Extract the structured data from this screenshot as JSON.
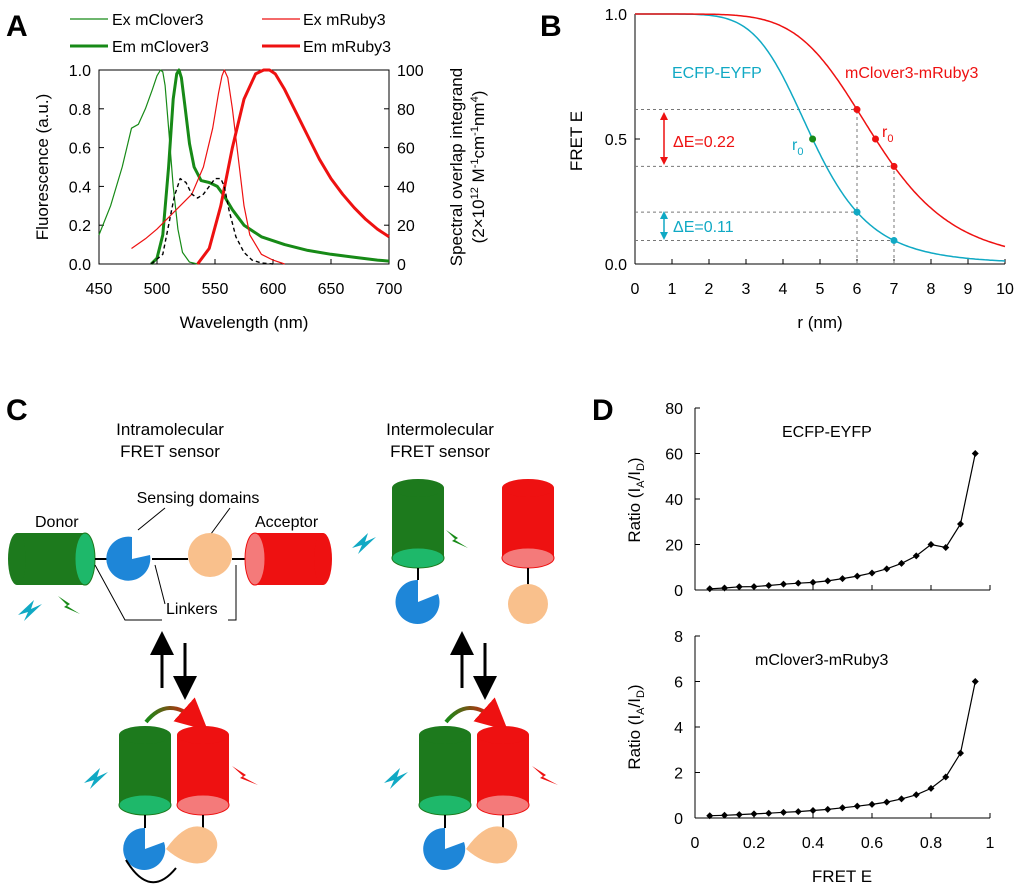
{
  "panels": {
    "A": "A",
    "B": "B",
    "C": "C",
    "D": "D"
  },
  "colors": {
    "green": "#178a17",
    "red": "#ee1111",
    "cyan": "#10a9c4",
    "dark_green": "#1d7a1d",
    "light_green": "#1eb86a",
    "blue": "#1e86d8",
    "peach": "#f9c08c",
    "pink": "#f47a7a"
  },
  "chart_data": [
    {
      "id": "A",
      "type": "line",
      "title": "",
      "xlabel": "Wavelength (nm)",
      "ylabel": "Fluorescence (a.u.)",
      "y2label_line1": "Spectral overlap integrand",
      "y2label_line2": "(2×10",
      "y2label_sup1": "12",
      "y2label_mid": " M",
      "y2label_sup2": "-1",
      "y2label_mid2": "cm",
      "y2label_sup3": "-1",
      "y2label_mid3": "nm",
      "y2label_sup4": "4",
      "y2label_end": ")",
      "xlim": [
        450,
        700
      ],
      "ylim": [
        0,
        1.0
      ],
      "y2lim": [
        0,
        100
      ],
      "xticks": [
        "450",
        "500",
        "550",
        "600",
        "650",
        "700"
      ],
      "yticks": [
        "0.0",
        "0.2",
        "0.4",
        "0.6",
        "0.8",
        "1.0"
      ],
      "y2ticks": [
        "0",
        "20",
        "40",
        "60",
        "80",
        "100"
      ],
      "legend": [
        "Ex mClover3",
        "Em mClover3",
        "Ex mRuby3",
        "Em mRuby3"
      ],
      "series": [
        {
          "name": "Ex mClover3",
          "color": "#178a17",
          "width": 1.2,
          "x": [
            450,
            460,
            470,
            478,
            484,
            490,
            496,
            500,
            503,
            505,
            507,
            510,
            514,
            518,
            522,
            528,
            535
          ],
          "y": [
            0.15,
            0.3,
            0.5,
            0.7,
            0.72,
            0.8,
            0.9,
            0.97,
            1.0,
            0.99,
            0.92,
            0.7,
            0.4,
            0.18,
            0.06,
            0.01,
            0.0
          ]
        },
        {
          "name": "Em mClover3",
          "color": "#178a17",
          "width": 3,
          "x": [
            495,
            500,
            505,
            510,
            514,
            517,
            519,
            521,
            524,
            528,
            532,
            538,
            545,
            552,
            558,
            565,
            575,
            590,
            610,
            630,
            650,
            670,
            690,
            700
          ],
          "y": [
            0.0,
            0.03,
            0.15,
            0.5,
            0.85,
            0.98,
            1.0,
            0.96,
            0.82,
            0.62,
            0.5,
            0.43,
            0.42,
            0.4,
            0.35,
            0.28,
            0.2,
            0.14,
            0.1,
            0.07,
            0.05,
            0.035,
            0.02,
            0.015
          ]
        },
        {
          "name": "Ex mRuby3",
          "color": "#ee1111",
          "width": 1.2,
          "x": [
            478,
            490,
            500,
            510,
            520,
            530,
            540,
            548,
            553,
            556,
            558,
            561,
            565,
            570,
            575,
            580,
            590,
            600,
            610
          ],
          "y": [
            0.08,
            0.13,
            0.18,
            0.24,
            0.3,
            0.36,
            0.5,
            0.7,
            0.88,
            0.97,
            1.0,
            0.96,
            0.8,
            0.55,
            0.3,
            0.15,
            0.05,
            0.02,
            0.0
          ]
        },
        {
          "name": "Em mRuby3",
          "color": "#ee1111",
          "width": 3,
          "x": [
            535,
            545,
            555,
            565,
            575,
            585,
            592,
            597,
            602,
            610,
            620,
            630,
            640,
            650,
            660,
            670,
            680,
            690,
            700
          ],
          "y": [
            0.0,
            0.08,
            0.3,
            0.6,
            0.85,
            0.98,
            1.0,
            1.0,
            0.98,
            0.9,
            0.78,
            0.66,
            0.54,
            0.44,
            0.36,
            0.29,
            0.23,
            0.18,
            0.14
          ]
        },
        {
          "name": "Overlap integrand",
          "color": "#000000",
          "width": 1.4,
          "dashed": true,
          "axis": "y2",
          "x": [
            495,
            505,
            510,
            515,
            520,
            525,
            530,
            535,
            540,
            545,
            550,
            555,
            558,
            562,
            568,
            575,
            582,
            590,
            600
          ],
          "y": [
            0,
            5,
            20,
            35,
            44,
            42,
            36,
            34,
            36,
            40,
            44,
            44,
            40,
            28,
            14,
            6,
            2,
            0.5,
            0
          ]
        }
      ]
    },
    {
      "id": "B",
      "type": "line",
      "xlabel": "r (nm)",
      "ylabel": "FRET E",
      "xlim": [
        0,
        10
      ],
      "ylim": [
        0,
        1
      ],
      "xticks": [
        "0",
        "1",
        "2",
        "3",
        "4",
        "5",
        "6",
        "7",
        "8",
        "9",
        "10"
      ],
      "yticks": [
        "0.0",
        "0.5",
        "1.0"
      ],
      "series": [
        {
          "name": "ECFP-EYFP",
          "color": "#10a9c4",
          "r0": 4.8
        },
        {
          "name": "mClover3-mRuby3",
          "color": "#ee1111",
          "r0": 6.5
        }
      ],
      "r0_label": "r",
      "r0_sub": "0",
      "delta_labels": [
        "ΔE=0.22",
        "ΔE=0.11"
      ]
    },
    {
      "id": "D1",
      "type": "line",
      "title": "ECFP-EYFP",
      "ylabel_main": "Ratio (I",
      "ylabel_subA": "A",
      "ylabel_mid": "/I",
      "ylabel_subD": "D",
      "ylabel_end": ")",
      "ylim": [
        0,
        80
      ],
      "xlim": [
        0,
        1
      ],
      "yticks": [
        "0",
        "20",
        "40",
        "60",
        "80"
      ],
      "x": [
        0.05,
        0.1,
        0.15,
        0.2,
        0.25,
        0.3,
        0.35,
        0.4,
        0.45,
        0.5,
        0.55,
        0.6,
        0.65,
        0.7,
        0.75,
        0.8,
        0.85,
        0.9,
        0.95
      ],
      "y": [
        0.53,
        0.89,
        1.41,
        1.5,
        2.0,
        2.57,
        3.0,
        3.33,
        4.0,
        5.0,
        6.1,
        7.5,
        9.3,
        11.7,
        15.0,
        20.0,
        18.7,
        29.0,
        60.0
      ]
    },
    {
      "id": "D2",
      "type": "line",
      "title": "mClover3-mRuby3",
      "ylabel_main": "Ratio (I",
      "ylabel_subA": "A",
      "ylabel_mid": "/I",
      "ylabel_subD": "D",
      "ylabel_end": ")",
      "xlabel": "FRET E",
      "ylim": [
        0,
        8
      ],
      "xlim": [
        0,
        1
      ],
      "yticks": [
        "0",
        "2",
        "4",
        "6",
        "8"
      ],
      "xticks": [
        "0",
        "0.2",
        "0.4",
        "0.6",
        "0.8",
        "1"
      ],
      "x": [
        0.05,
        0.1,
        0.15,
        0.2,
        0.25,
        0.3,
        0.35,
        0.4,
        0.45,
        0.5,
        0.55,
        0.6,
        0.65,
        0.7,
        0.75,
        0.8,
        0.85,
        0.9,
        0.95
      ],
      "y": [
        0.1,
        0.12,
        0.15,
        0.18,
        0.21,
        0.25,
        0.28,
        0.33,
        0.38,
        0.45,
        0.52,
        0.6,
        0.7,
        0.84,
        1.02,
        1.3,
        1.8,
        2.85,
        6.0
      ]
    }
  ],
  "diagram": {
    "intra_title_1": "Intramolecular",
    "intra_title_2": "FRET sensor",
    "inter_title_1": "Intermolecular",
    "inter_title_2": "FRET sensor",
    "sensing_domains": "Sensing domains",
    "donor": "Donor",
    "acceptor": "Acceptor",
    "linkers": "Linkers"
  }
}
